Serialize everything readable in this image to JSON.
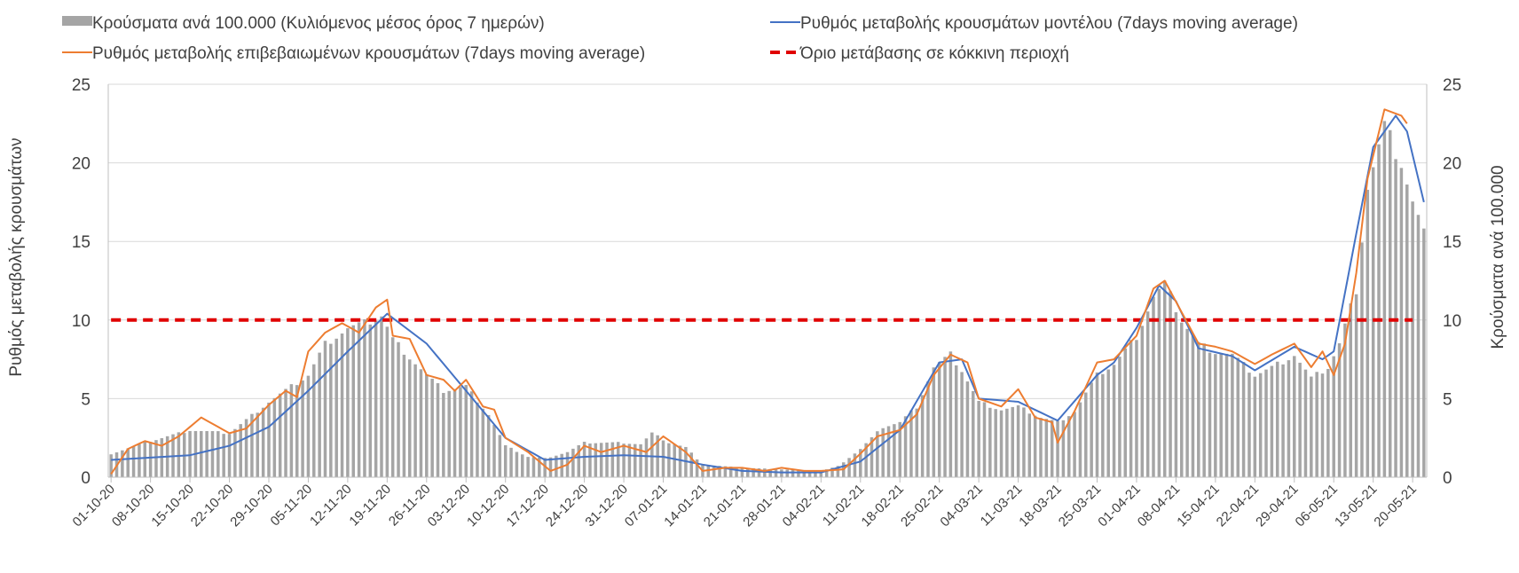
{
  "chart_data": {
    "type": "bar",
    "title": "",
    "ylabel_left": "Ρυθμός μεταβολής κρουσμάτων",
    "ylabel_right": "Κρούσματα ανά 100.000",
    "ylim_left": [
      0,
      25
    ],
    "ylim_right": [
      0,
      25
    ],
    "yticks_left": [
      "0",
      "5",
      "10",
      "15",
      "20",
      "25"
    ],
    "yticks_right": [
      "0",
      "5",
      "10",
      "15",
      "20",
      "25"
    ],
    "grid": true,
    "legend_position": "top",
    "legend": [
      {
        "name": "Κρούσματα ανά 100.000 (Κυλιόμενος μέσος όρος 7 ημερών)",
        "kind": "bar",
        "color": "#a5a5a5"
      },
      {
        "name": "Ρυθμός μεταβολής κρουσμάτων μοντέλου (7days moving average)",
        "kind": "line",
        "color": "#4472c4"
      },
      {
        "name": "Ρυθμός μεταβολής επιβεβαιωμένων κρουσμάτων (7days moving average)",
        "kind": "line",
        "color": "#ed7d31"
      },
      {
        "name": "Όριο μετάβασης σε κόκκινη περιοχή",
        "kind": "dashed",
        "color": "#e00000"
      }
    ],
    "x_start": "2020-10-01",
    "x_end": "2021-05-22",
    "date_tick_labels": [
      "01-10-20",
      "08-10-20",
      "15-10-20",
      "22-10-20",
      "29-10-20",
      "05-11-20",
      "12-11-20",
      "19-11-20",
      "26-11-20",
      "03-12-20",
      "10-12-20",
      "17-12-20",
      "24-12-20",
      "31-12-20",
      "07-01-21",
      "14-01-21",
      "21-01-21",
      "28-01-21",
      "04-02-21",
      "11-02-21",
      "18-02-21",
      "25-02-21",
      "04-03-21",
      "11-03-21",
      "18-03-21",
      "25-03-21",
      "01-04-21",
      "08-04-21",
      "15-04-21",
      "22-04-21",
      "29-04-21",
      "06-05-21",
      "13-05-21",
      "20-05-21"
    ],
    "bar_anchors": [
      [
        "2020-10-01",
        1.5
      ],
      [
        "2020-10-08",
        2.3
      ],
      [
        "2020-10-15",
        3.0
      ],
      [
        "2020-10-22",
        2.8
      ],
      [
        "2020-10-29",
        4.8
      ],
      [
        "2020-11-05",
        6.5
      ],
      [
        "2020-11-08",
        8.5
      ],
      [
        "2020-11-12",
        9.5
      ],
      [
        "2020-11-15",
        9.8
      ],
      [
        "2020-11-18",
        10.3
      ],
      [
        "2020-11-20",
        8.8
      ],
      [
        "2020-11-26",
        6.5
      ],
      [
        "2020-11-29",
        5.5
      ],
      [
        "2020-12-03",
        5.8
      ],
      [
        "2020-12-07",
        4.0
      ],
      [
        "2020-12-10",
        2.0
      ],
      [
        "2020-12-14",
        1.3
      ],
      [
        "2020-12-17",
        1.2
      ],
      [
        "2020-12-21",
        1.6
      ],
      [
        "2020-12-24",
        2.2
      ],
      [
        "2020-12-31",
        2.2
      ],
      [
        "2021-01-03",
        2.1
      ],
      [
        "2021-01-05",
        2.8
      ],
      [
        "2021-01-08",
        2.2
      ],
      [
        "2021-01-11",
        1.9
      ],
      [
        "2021-01-14",
        0.8
      ],
      [
        "2021-01-21",
        0.6
      ],
      [
        "2021-01-28",
        0.5
      ],
      [
        "2021-02-04",
        0.4
      ],
      [
        "2021-02-07",
        0.7
      ],
      [
        "2021-02-11",
        1.8
      ],
      [
        "2021-02-15",
        3.2
      ],
      [
        "2021-02-18",
        3.5
      ],
      [
        "2021-02-21",
        4.5
      ],
      [
        "2021-02-24",
        7.0
      ],
      [
        "2021-02-27",
        7.8
      ],
      [
        "2021-03-01",
        6.8
      ],
      [
        "2021-03-04",
        4.8
      ],
      [
        "2021-03-08",
        4.3
      ],
      [
        "2021-03-11",
        4.5
      ],
      [
        "2021-03-15",
        3.8
      ],
      [
        "2021-03-18",
        3.5
      ],
      [
        "2021-03-21",
        4.2
      ],
      [
        "2021-03-25",
        6.5
      ],
      [
        "2021-03-28",
        7.2
      ],
      [
        "2021-04-01",
        9.0
      ],
      [
        "2021-04-04",
        11.5
      ],
      [
        "2021-04-06",
        12.3
      ],
      [
        "2021-04-09",
        10.0
      ],
      [
        "2021-04-12",
        8.5
      ],
      [
        "2021-04-15",
        8.0
      ],
      [
        "2021-04-18",
        7.8
      ],
      [
        "2021-04-22",
        6.5
      ],
      [
        "2021-04-25",
        7.0
      ],
      [
        "2021-04-29",
        7.8
      ],
      [
        "2021-05-02",
        6.3
      ],
      [
        "2021-05-05",
        7.0
      ],
      [
        "2021-05-07",
        8.5
      ],
      [
        "2021-05-10",
        12.0
      ],
      [
        "2021-05-12",
        18.5
      ],
      [
        "2021-05-15",
        22.3
      ],
      [
        "2021-05-18",
        20.0
      ],
      [
        "2021-05-20",
        17.5
      ],
      [
        "2021-05-22",
        15.5
      ]
    ],
    "model_rate_anchors": [
      [
        "2020-10-01",
        1.1
      ],
      [
        "2020-10-15",
        1.4
      ],
      [
        "2020-10-22",
        2.0
      ],
      [
        "2020-10-29",
        3.2
      ],
      [
        "2020-11-05",
        5.5
      ],
      [
        "2020-11-12",
        8.0
      ],
      [
        "2020-11-19",
        10.4
      ],
      [
        "2020-11-26",
        8.5
      ],
      [
        "2020-12-03",
        5.5
      ],
      [
        "2020-12-10",
        2.5
      ],
      [
        "2020-12-17",
        1.1
      ],
      [
        "2020-12-24",
        1.3
      ],
      [
        "2020-12-31",
        1.4
      ],
      [
        "2021-01-07",
        1.3
      ],
      [
        "2021-01-14",
        0.8
      ],
      [
        "2021-01-21",
        0.4
      ],
      [
        "2021-01-28",
        0.3
      ],
      [
        "2021-02-04",
        0.3
      ],
      [
        "2021-02-11",
        1.0
      ],
      [
        "2021-02-18",
        3.0
      ],
      [
        "2021-02-25",
        7.3
      ],
      [
        "2021-03-01",
        7.5
      ],
      [
        "2021-03-04",
        5.0
      ],
      [
        "2021-03-11",
        4.8
      ],
      [
        "2021-03-18",
        3.6
      ],
      [
        "2021-03-25",
        6.5
      ],
      [
        "2021-03-28",
        7.3
      ],
      [
        "2021-04-01",
        9.5
      ],
      [
        "2021-04-05",
        12.2
      ],
      [
        "2021-04-08",
        11.2
      ],
      [
        "2021-04-12",
        8.2
      ],
      [
        "2021-04-18",
        7.7
      ],
      [
        "2021-04-22",
        6.8
      ],
      [
        "2021-04-29",
        8.3
      ],
      [
        "2021-05-04",
        7.5
      ],
      [
        "2021-05-06",
        8.0
      ],
      [
        "2021-05-10",
        15.5
      ],
      [
        "2021-05-13",
        21.0
      ],
      [
        "2021-05-17",
        23.0
      ],
      [
        "2021-05-19",
        22.0
      ],
      [
        "2021-05-22",
        17.5
      ]
    ],
    "confirmed_rate_anchors": [
      [
        "2020-10-01",
        0.2
      ],
      [
        "2020-10-04",
        1.8
      ],
      [
        "2020-10-07",
        2.3
      ],
      [
        "2020-10-10",
        2.0
      ],
      [
        "2020-10-13",
        2.6
      ],
      [
        "2020-10-17",
        3.8
      ],
      [
        "2020-10-20",
        3.2
      ],
      [
        "2020-10-22",
        2.8
      ],
      [
        "2020-10-25",
        3.1
      ],
      [
        "2020-10-29",
        4.6
      ],
      [
        "2020-11-01",
        5.5
      ],
      [
        "2020-11-03",
        5.1
      ],
      [
        "2020-11-05",
        8.0
      ],
      [
        "2020-11-08",
        9.2
      ],
      [
        "2020-11-11",
        9.8
      ],
      [
        "2020-11-14",
        9.2
      ],
      [
        "2020-11-17",
        10.8
      ],
      [
        "2020-11-19",
        11.3
      ],
      [
        "2020-11-20",
        9.0
      ],
      [
        "2020-11-23",
        8.8
      ],
      [
        "2020-11-26",
        6.5
      ],
      [
        "2020-11-29",
        6.2
      ],
      [
        "2020-12-01",
        5.5
      ],
      [
        "2020-12-03",
        6.2
      ],
      [
        "2020-12-06",
        4.5
      ],
      [
        "2020-12-08",
        4.3
      ],
      [
        "2020-12-10",
        2.5
      ],
      [
        "2020-12-14",
        1.6
      ],
      [
        "2020-12-18",
        0.4
      ],
      [
        "2020-12-21",
        0.8
      ],
      [
        "2020-12-24",
        2.0
      ],
      [
        "2020-12-27",
        1.6
      ],
      [
        "2020-12-31",
        2.0
      ],
      [
        "2021-01-04",
        1.6
      ],
      [
        "2021-01-07",
        2.6
      ],
      [
        "2021-01-11",
        1.6
      ],
      [
        "2021-01-14",
        0.4
      ],
      [
        "2021-01-18",
        0.6
      ],
      [
        "2021-01-21",
        0.6
      ],
      [
        "2021-01-25",
        0.4
      ],
      [
        "2021-01-28",
        0.6
      ],
      [
        "2021-02-01",
        0.4
      ],
      [
        "2021-02-04",
        0.4
      ],
      [
        "2021-02-08",
        0.5
      ],
      [
        "2021-02-11",
        1.5
      ],
      [
        "2021-02-14",
        2.6
      ],
      [
        "2021-02-18",
        3.0
      ],
      [
        "2021-02-21",
        4.0
      ],
      [
        "2021-02-24",
        6.5
      ],
      [
        "2021-02-27",
        7.8
      ],
      [
        "2021-03-02",
        7.3
      ],
      [
        "2021-03-04",
        5.0
      ],
      [
        "2021-03-08",
        4.5
      ],
      [
        "2021-03-11",
        5.6
      ],
      [
        "2021-03-14",
        3.8
      ],
      [
        "2021-03-17",
        3.5
      ],
      [
        "2021-03-18",
        2.2
      ],
      [
        "2021-03-21",
        4.2
      ],
      [
        "2021-03-25",
        7.3
      ],
      [
        "2021-03-28",
        7.5
      ],
      [
        "2021-04-01",
        9.0
      ],
      [
        "2021-04-04",
        12.0
      ],
      [
        "2021-04-06",
        12.5
      ],
      [
        "2021-04-09",
        10.5
      ],
      [
        "2021-04-12",
        8.5
      ],
      [
        "2021-04-15",
        8.3
      ],
      [
        "2021-04-18",
        8.0
      ],
      [
        "2021-04-22",
        7.2
      ],
      [
        "2021-04-25",
        7.8
      ],
      [
        "2021-04-29",
        8.5
      ],
      [
        "2021-05-02",
        7.0
      ],
      [
        "2021-05-04",
        8.0
      ],
      [
        "2021-05-06",
        6.5
      ],
      [
        "2021-05-08",
        8.5
      ],
      [
        "2021-05-10",
        13.0
      ],
      [
        "2021-05-12",
        19.0
      ],
      [
        "2021-05-15",
        23.4
      ],
      [
        "2021-05-18",
        23.0
      ],
      [
        "2021-05-19",
        22.5
      ]
    ],
    "red_threshold": 10
  }
}
